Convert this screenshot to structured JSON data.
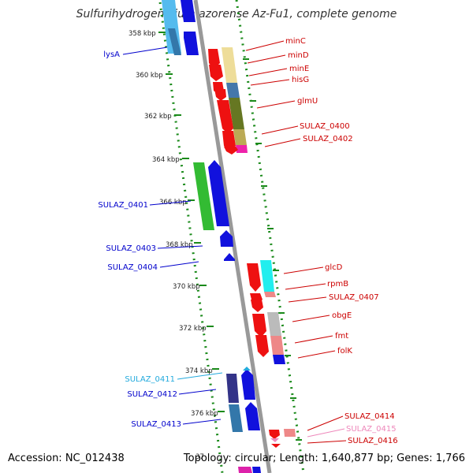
{
  "title": "Sulfurihydrogenibium azorense Az-Fu1, complete genome",
  "accession_label": "Accession: NC_012438",
  "topology_label": "Topology: circular; Length: 1,640,877 bp; Genes: 1,766",
  "ticks": [
    "358 kbp",
    "360 kbp",
    "362 kbp",
    "364 kbp",
    "366 kbp",
    "368 kbp",
    "370 kbp",
    "372 kbp",
    "374 kbp",
    "376 kbp",
    "37"
  ],
  "genes_right": [
    {
      "name": "minC",
      "color": "#cc0000"
    },
    {
      "name": "minD",
      "color": "#cc0000"
    },
    {
      "name": "minE",
      "color": "#cc0000"
    },
    {
      "name": "hisG",
      "color": "#cc0000"
    },
    {
      "name": "glmU",
      "color": "#cc0000"
    },
    {
      "name": "SULAZ_0400",
      "color": "#cc0000"
    },
    {
      "name": "SULAZ_0402",
      "color": "#cc0000"
    },
    {
      "name": "glcD",
      "color": "#cc0000"
    },
    {
      "name": "rpmB",
      "color": "#cc0000"
    },
    {
      "name": "SULAZ_0407",
      "color": "#cc0000"
    },
    {
      "name": "obgE",
      "color": "#cc0000"
    },
    {
      "name": "fmt",
      "color": "#cc0000"
    },
    {
      "name": "folK",
      "color": "#cc0000"
    },
    {
      "name": "SULAZ_0414",
      "color": "#cc0000"
    },
    {
      "name": "SULAZ_0415",
      "color": "#ee88bb"
    },
    {
      "name": "SULAZ_0416",
      "color": "#cc0000"
    }
  ],
  "genes_left": [
    {
      "name": "lysA",
      "color": "#0000cc"
    },
    {
      "name": "SULAZ_0401",
      "color": "#0000cc"
    },
    {
      "name": "SULAZ_0403",
      "color": "#0000cc"
    },
    {
      "name": "SULAZ_0404",
      "color": "#0000cc"
    },
    {
      "name": "SULAZ_0411",
      "color": "#22aadd"
    },
    {
      "name": "SULAZ_0412",
      "color": "#0000cc"
    },
    {
      "name": "SULAZ_0413",
      "color": "#0000cc"
    }
  ]
}
